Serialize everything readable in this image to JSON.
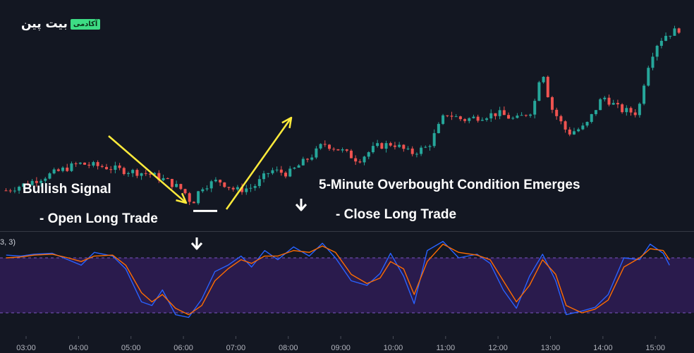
{
  "logo": {
    "text": "بیت پین",
    "badge": "آکادمی"
  },
  "annotations": {
    "bullish_signal": "Bullish Signal",
    "open_long": "- Open Long Trade",
    "overbought": "5-Minute Overbought Condition Emerges",
    "close_long": "- Close Long Trade"
  },
  "indicator_label": "3, 3)",
  "colors": {
    "background": "#131722",
    "up_candle": "#26a69a",
    "down_candle": "#ef5350",
    "k_line": "#2962ff",
    "d_line": "#ff6d00",
    "band_fill": "#2a1b4d",
    "band_border": "#7e57c2",
    "arrow_yellow": "#ffeb3b",
    "separator": "#363a45"
  },
  "chart_data": [
    {
      "type": "candlestick",
      "title": "",
      "x_ticks": [
        "03:00",
        "04:00",
        "05:00",
        "06:00",
        "07:00",
        "08:00",
        "09:00",
        "10:00",
        "11:00",
        "12:00",
        "13:00",
        "14:00",
        "15:00"
      ],
      "close_path": [
        [
          "02:37",
          60
        ],
        [
          "03:00",
          62
        ],
        [
          "03:40",
          66
        ],
        [
          "04:00",
          68
        ],
        [
          "04:30",
          67
        ],
        [
          "04:50",
          66
        ],
        [
          "05:20",
          65
        ],
        [
          "05:40",
          63
        ],
        [
          "06:00",
          60
        ],
        [
          "06:10",
          56
        ],
        [
          "06:20",
          61
        ],
        [
          "06:40",
          63
        ],
        [
          "07:00",
          60
        ],
        [
          "07:20",
          61
        ],
        [
          "07:40",
          66
        ],
        [
          "08:00",
          65
        ],
        [
          "08:30",
          71
        ],
        [
          "08:40",
          74
        ],
        [
          "09:00",
          72
        ],
        [
          "09:20",
          69
        ],
        [
          "09:40",
          73
        ],
        [
          "10:00",
          74
        ],
        [
          "10:20",
          71
        ],
        [
          "10:40",
          73
        ],
        [
          "11:00",
          83
        ],
        [
          "11:20",
          81
        ],
        [
          "11:40",
          82
        ],
        [
          "12:00",
          83
        ],
        [
          "12:20",
          81
        ],
        [
          "12:40",
          84
        ],
        [
          "12:50",
          97
        ],
        [
          "13:00",
          85
        ],
        [
          "13:20",
          77
        ],
        [
          "13:40",
          79
        ],
        [
          "14:00",
          88
        ],
        [
          "14:20",
          84
        ],
        [
          "14:40",
          83
        ],
        [
          "14:50",
          96
        ],
        [
          "15:00",
          103
        ],
        [
          "15:10",
          106
        ],
        [
          "15:27",
          108
        ]
      ],
      "y_range": [
        50,
        115
      ],
      "annotation_level": {
        "time": "06:25",
        "value": 56,
        "label": ""
      }
    },
    {
      "type": "line",
      "title": "",
      "series": [
        {
          "name": "",
          "role": "%K",
          "points": [
            [
              2.62,
              83
            ],
            [
              2.9,
              82
            ],
            [
              3.15,
              84
            ],
            [
              3.5,
              85
            ],
            [
              3.8,
              78
            ],
            [
              4.05,
              72
            ],
            [
              4.3,
              86
            ],
            [
              4.65,
              82
            ],
            [
              4.9,
              68
            ],
            [
              5.2,
              32
            ],
            [
              5.4,
              28
            ],
            [
              5.6,
              45
            ],
            [
              5.85,
              18
            ],
            [
              6.1,
              15
            ],
            [
              6.35,
              35
            ],
            [
              6.6,
              65
            ],
            [
              6.85,
              72
            ],
            [
              7.1,
              82
            ],
            [
              7.3,
              70
            ],
            [
              7.55,
              88
            ],
            [
              7.8,
              78
            ],
            [
              8.1,
              92
            ],
            [
              8.4,
              82
            ],
            [
              8.65,
              96
            ],
            [
              8.9,
              80
            ],
            [
              9.2,
              55
            ],
            [
              9.5,
              50
            ],
            [
              9.75,
              63
            ],
            [
              9.95,
              85
            ],
            [
              10.2,
              60
            ],
            [
              10.4,
              30
            ],
            [
              10.65,
              88
            ],
            [
              10.95,
              98
            ],
            [
              11.25,
              80
            ],
            [
              11.6,
              84
            ],
            [
              11.85,
              74
            ],
            [
              12.1,
              45
            ],
            [
              12.35,
              25
            ],
            [
              12.6,
              60
            ],
            [
              12.85,
              84
            ],
            [
              13.1,
              55
            ],
            [
              13.3,
              18
            ],
            [
              13.6,
              22
            ],
            [
              13.85,
              26
            ],
            [
              14.1,
              40
            ],
            [
              14.4,
              80
            ],
            [
              14.7,
              78
            ],
            [
              14.9,
              95
            ],
            [
              15.15,
              85
            ],
            [
              15.27,
              72
            ]
          ]
        },
        {
          "name": "",
          "role": "%D",
          "points": [
            [
              2.62,
              80
            ],
            [
              2.9,
              81
            ],
            [
              3.15,
              83
            ],
            [
              3.5,
              84
            ],
            [
              3.8,
              80
            ],
            [
              4.05,
              76
            ],
            [
              4.3,
              82
            ],
            [
              4.65,
              83
            ],
            [
              4.9,
              72
            ],
            [
              5.2,
              42
            ],
            [
              5.4,
              32
            ],
            [
              5.6,
              40
            ],
            [
              5.85,
              25
            ],
            [
              6.1,
              18
            ],
            [
              6.35,
              28
            ],
            [
              6.6,
              55
            ],
            [
              6.85,
              68
            ],
            [
              7.1,
              78
            ],
            [
              7.3,
              74
            ],
            [
              7.55,
              82
            ],
            [
              7.8,
              82
            ],
            [
              8.1,
              88
            ],
            [
              8.4,
              86
            ],
            [
              8.65,
              93
            ],
            [
              8.9,
              86
            ],
            [
              9.2,
              62
            ],
            [
              9.5,
              52
            ],
            [
              9.75,
              58
            ],
            [
              9.95,
              76
            ],
            [
              10.2,
              68
            ],
            [
              10.4,
              40
            ],
            [
              10.65,
              76
            ],
            [
              10.95,
              95
            ],
            [
              11.25,
              86
            ],
            [
              11.6,
              83
            ],
            [
              11.85,
              78
            ],
            [
              12.1,
              55
            ],
            [
              12.35,
              32
            ],
            [
              12.6,
              50
            ],
            [
              12.85,
              78
            ],
            [
              13.1,
              62
            ],
            [
              13.3,
              28
            ],
            [
              13.6,
              20
            ],
            [
              13.85,
              24
            ],
            [
              14.1,
              34
            ],
            [
              14.4,
              70
            ],
            [
              14.7,
              80
            ],
            [
              14.9,
              90
            ],
            [
              15.15,
              88
            ],
            [
              15.27,
              78
            ]
          ]
        }
      ],
      "y_range": [
        0,
        100
      ],
      "bands": {
        "upper": 80,
        "lower": 20
      }
    }
  ]
}
